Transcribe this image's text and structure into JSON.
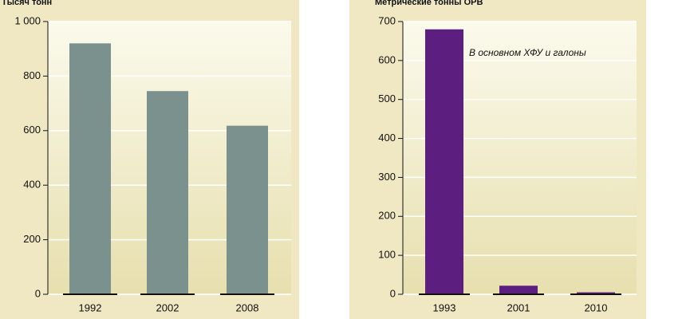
{
  "chart_data": [
    {
      "type": "bar",
      "title": "Тысяч тонн",
      "categories": [
        "1992",
        "2002",
        "2008"
      ],
      "values": [
        920,
        745,
        618
      ],
      "color": "#7a918d",
      "ylim": [
        0,
        1000
      ],
      "yticks": [
        0,
        200,
        400,
        600,
        800,
        {
          "value": 1000,
          "label": "1 000"
        }
      ],
      "grid": true
    },
    {
      "type": "bar",
      "title": "Метрические тонны ОРВ",
      "categories": [
        "1993",
        "2001",
        "2010"
      ],
      "values": [
        680,
        22,
        5
      ],
      "color": "#5c1f7f",
      "ylim": [
        0,
        700
      ],
      "yticks": [
        0,
        100,
        200,
        300,
        400,
        500,
        600,
        700
      ],
      "grid": true,
      "annotation": "В основном ХФУ и галоны"
    }
  ]
}
